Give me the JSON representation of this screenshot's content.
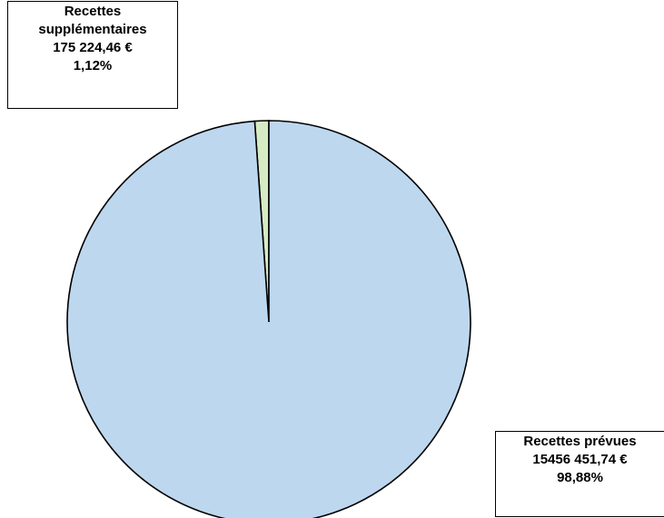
{
  "chart_data": {
    "type": "pie",
    "slices": [
      {
        "name": "Recettes supplémentaires",
        "name_lines": [
          "Recettes",
          "supplémentaires"
        ],
        "value_label": "175 224,46 €",
        "percent_label": "1,12%",
        "value": 175224.46,
        "percent": 1.12,
        "color": "#d6ebc4"
      },
      {
        "name": "Recettes prévues",
        "name_lines": [
          "Recettes prévues"
        ],
        "value_label": "15456 451,74 €",
        "percent_label": "98,88%",
        "value": 15456451.74,
        "percent": 98.88,
        "color": "#bdd7ee"
      }
    ],
    "start_angle_deg": 0,
    "direction": "counterclockwise-from-top-for-small-slice",
    "stroke_color": "#000000"
  }
}
